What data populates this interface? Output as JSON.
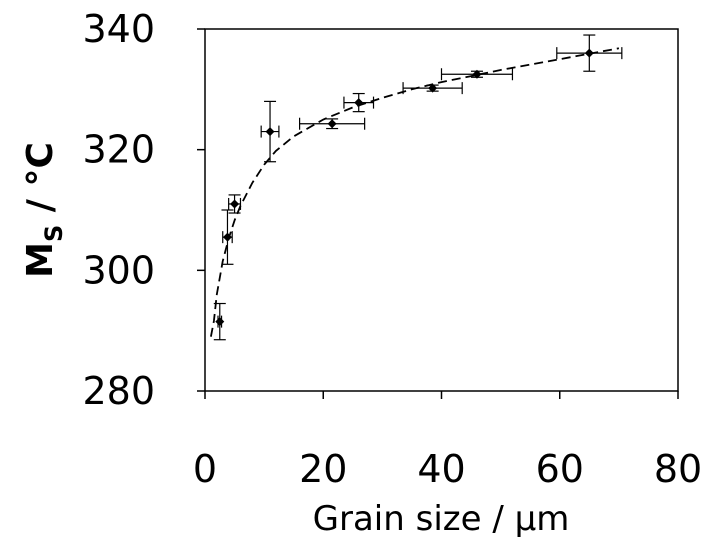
{
  "chart_data": {
    "type": "scatter",
    "title": "",
    "xlabel": "Grain size / µm",
    "ylabel": {
      "main": "M",
      "sub": "S",
      "unit": " / °C"
    },
    "xlim": [
      0,
      80
    ],
    "ylim": [
      280,
      340
    ],
    "xticks": [
      "0",
      "20",
      "40",
      "60",
      "80"
    ],
    "yticks": [
      "280",
      "300",
      "320",
      "340"
    ],
    "grid": false,
    "legend": "none",
    "series": [
      {
        "points": [
          {
            "x": 2.5,
            "y": 291.5,
            "xerr": 0.3,
            "yerr": 3.0
          },
          {
            "x": 3.8,
            "y": 305.5,
            "xerr": 0.8,
            "yerr": 4.5
          },
          {
            "x": 5.0,
            "y": 311.0,
            "xerr": 1.0,
            "yerr": 1.5
          },
          {
            "x": 11.0,
            "y": 323.0,
            "xerr": 1.5,
            "yerr": 5.0
          },
          {
            "x": 21.5,
            "y": 324.3,
            "xerr": 5.5,
            "yerr": 0.8
          },
          {
            "x": 26.0,
            "y": 327.8,
            "xerr": 2.5,
            "yerr": 1.5
          },
          {
            "x": 38.5,
            "y": 330.2,
            "xerr": 5.0,
            "yerr": 0.5
          },
          {
            "x": 46.0,
            "y": 332.5,
            "xerr": 6.0,
            "yerr": 0.5
          },
          {
            "x": 65.0,
            "y": 336.0,
            "xerr": 5.5,
            "yerr": 3.0
          }
        ]
      }
    ],
    "fit_line": {
      "style": "dashed",
      "x": [
        1.0,
        1.5,
        2,
        3,
        4,
        5,
        6,
        8,
        10,
        12,
        15,
        20,
        25,
        30,
        35,
        40,
        45,
        50,
        55,
        60,
        65,
        70
      ],
      "y": [
        289.0,
        291.6,
        296.0,
        301.5,
        305.3,
        308.3,
        310.7,
        314.5,
        317.5,
        319.8,
        322.2,
        325.0,
        327.0,
        328.6,
        330.0,
        331.2,
        332.2,
        333.2,
        334.1,
        335.0,
        335.9,
        336.8
      ]
    },
    "colors": {
      "marker": "#000000",
      "axis": "#000000",
      "fit": "#000000"
    }
  }
}
